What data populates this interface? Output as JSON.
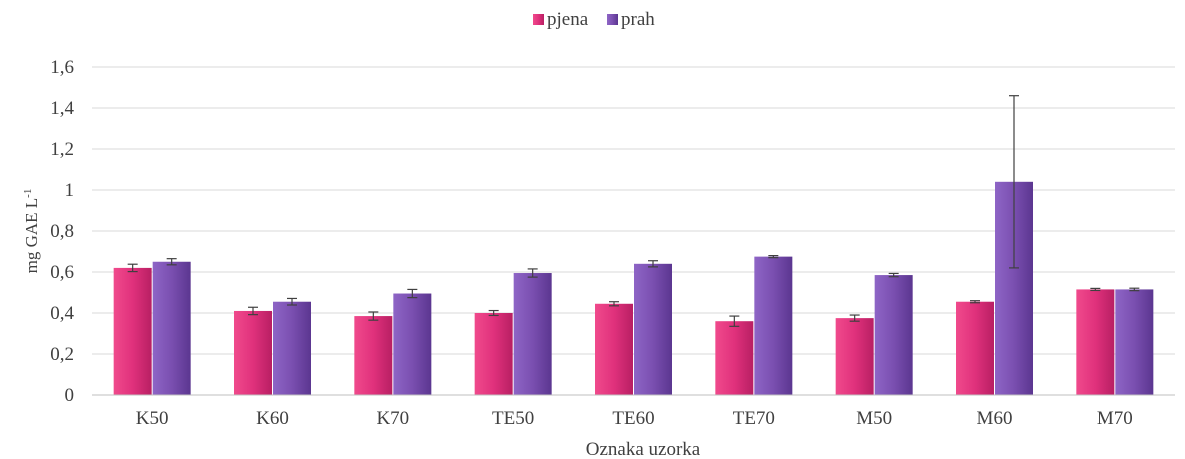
{
  "chart_data": {
    "type": "bar",
    "xlabel": "Oznaka uzorka",
    "ylabel": "mg GAE L",
    "ylabel_superscript": "-1",
    "ylim": [
      0,
      1.6
    ],
    "yticks": [
      0,
      0.2,
      0.4,
      0.6,
      0.8,
      1,
      1.2,
      1.4,
      1.6
    ],
    "ytick_labels": [
      "0",
      "0,2",
      "0,4",
      "0,6",
      "0,8",
      "1",
      "1,2",
      "1,4",
      "1,6"
    ],
    "grid": true,
    "legend_position": "top-center",
    "categories": [
      "K50",
      "K60",
      "K70",
      "TE50",
      "TE60",
      "TE70",
      "M50",
      "M60",
      "M70"
    ],
    "series": [
      {
        "name": "pjena",
        "color": "#e0317c",
        "values": [
          0.62,
          0.41,
          0.385,
          0.4,
          0.445,
          0.36,
          0.375,
          0.455,
          0.515
        ],
        "errors": [
          0.018,
          0.018,
          0.02,
          0.012,
          0.01,
          0.025,
          0.015,
          0.005,
          0.005
        ]
      },
      {
        "name": "prah",
        "color": "#7a4fb0",
        "values": [
          0.65,
          0.455,
          0.495,
          0.595,
          0.64,
          0.675,
          0.585,
          1.04,
          0.515
        ],
        "errors": [
          0.015,
          0.016,
          0.02,
          0.02,
          0.015,
          0.005,
          0.008,
          0.42,
          0.006
        ]
      }
    ]
  }
}
